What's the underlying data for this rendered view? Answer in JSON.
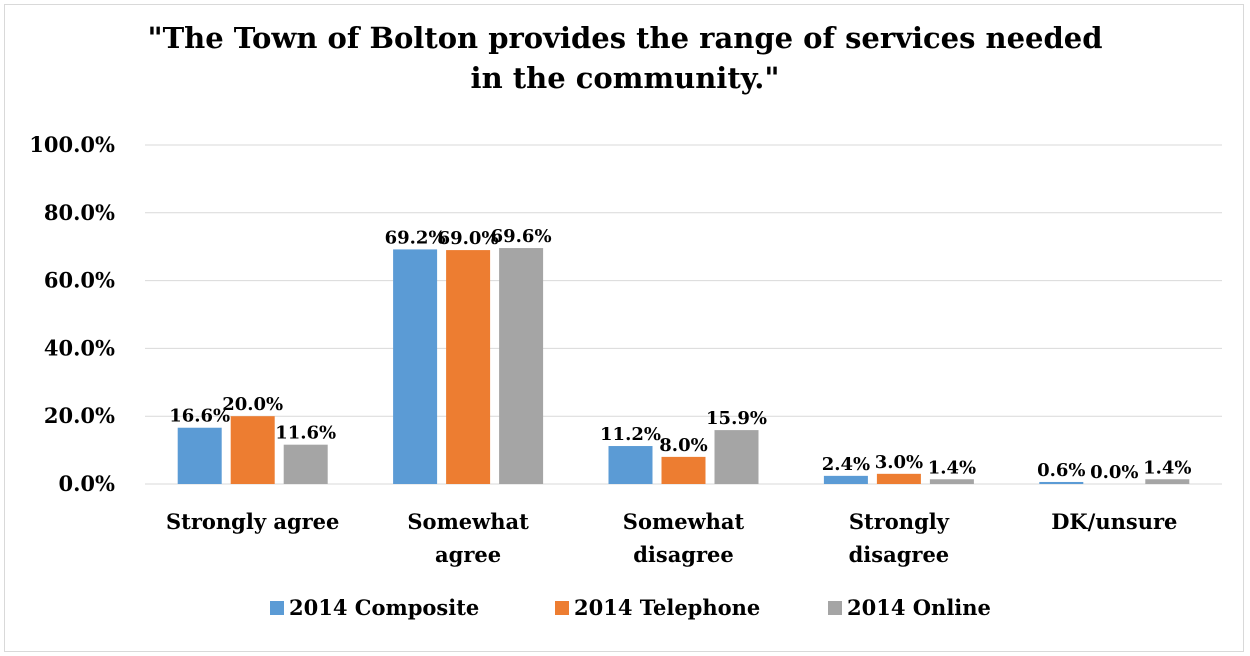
{
  "chart_data": {
    "type": "bar",
    "title_line1": "\"The Town of Bolton provides the range of services needed",
    "title_line2": "in the community.\"",
    "categories": [
      [
        "Strongly agree"
      ],
      [
        "Somewhat",
        "agree"
      ],
      [
        "Somewhat",
        "disagree"
      ],
      [
        "Strongly",
        "disagree"
      ],
      [
        "DK/unsure"
      ]
    ],
    "series": [
      {
        "name": "2014 Composite",
        "color": "#5b9bd5",
        "values": [
          16.6,
          69.2,
          11.2,
          2.4,
          0.6
        ],
        "labels": [
          "16.6%",
          "69.2%",
          "11.2%",
          "2.4%",
          "0.6%"
        ]
      },
      {
        "name": "2014 Telephone",
        "color": "#ed7d31",
        "values": [
          20.0,
          69.0,
          8.0,
          3.0,
          0.0
        ],
        "labels": [
          "20.0%",
          "69.0%",
          "8.0%",
          "3.0%",
          "0.0%"
        ]
      },
      {
        "name": "2014 Online",
        "color": "#a5a5a5",
        "values": [
          11.6,
          69.6,
          15.9,
          1.4,
          1.4
        ],
        "labels": [
          "11.6%",
          "69.6%",
          "15.9%",
          "1.4%",
          "1.4%"
        ]
      }
    ],
    "yticks": [
      "0.0%",
      "20.0%",
      "40.0%",
      "60.0%",
      "80.0%",
      "100.0%"
    ],
    "ylim": [
      0,
      100
    ],
    "grid": true,
    "legend_position": "bottom"
  }
}
